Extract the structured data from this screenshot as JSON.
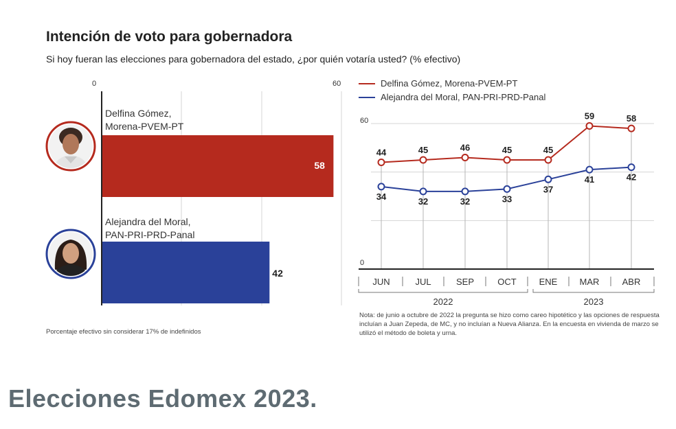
{
  "title": "Intención de voto para gobernadora",
  "subtitle": "Si hoy fueran las elecciones para gobernadora del estado, ¿por quién votaría usted? (% efectivo)",
  "colors": {
    "delfina": "#b52a1e",
    "alejandra": "#2a4199",
    "banner": "#5e6b72"
  },
  "chart_data": [
    {
      "type": "bar",
      "orientation": "horizontal",
      "axis_ticks": [
        "0",
        "60"
      ],
      "xlim": [
        0,
        60
      ],
      "categories": [
        {
          "name_line1": "Delfina Gómez,",
          "name_line2": "Morena-PVEM-PT"
        },
        {
          "name_line1": "Alejandra del Moral,",
          "name_line2": "PAN-PRI-PRD-Panal"
        }
      ],
      "values": [
        58,
        42
      ],
      "bar_colors": [
        "#b52a1e",
        "#2a4199"
      ],
      "footnote": "Porcentaje efectivo sin considerar 17% de indefinidos"
    },
    {
      "type": "line",
      "legend": [
        "Delfina Gómez, Morena-PVEM-PT",
        "Alejandra del Moral, PAN-PRI-PRD-Panal"
      ],
      "legend_placement": "top",
      "x": [
        "JUN",
        "JUL",
        "SEP",
        "OCT",
        "ENE",
        "MAR",
        "ABR"
      ],
      "x_groups": [
        {
          "label": "2022",
          "months": 4
        },
        {
          "label": "2023",
          "months": 3
        }
      ],
      "ylim": [
        0,
        60
      ],
      "y_ticks": [
        "60",
        "0"
      ],
      "grid": true,
      "series": [
        {
          "name": "Delfina Gómez, Morena-PVEM-PT",
          "color": "#b52a1e",
          "values": [
            44,
            45,
            46,
            45,
            45,
            59,
            58
          ]
        },
        {
          "name": "Alejandra del Moral, PAN-PRI-PRD-Panal",
          "color": "#2a4199",
          "values": [
            34,
            32,
            32,
            33,
            37,
            41,
            42
          ]
        }
      ],
      "note": "Nota: de junio a octubre de 2022 la pregunta se hizo como careo hipotético y las opciones de respuesta incluían a Juan Zepeda, de MC, y no incluían a Nueva Alianza. En la encuesta en vivienda de marzo se utilizó el método de boleta y urna."
    }
  ],
  "banner": "Elecciones Edomex 2023."
}
